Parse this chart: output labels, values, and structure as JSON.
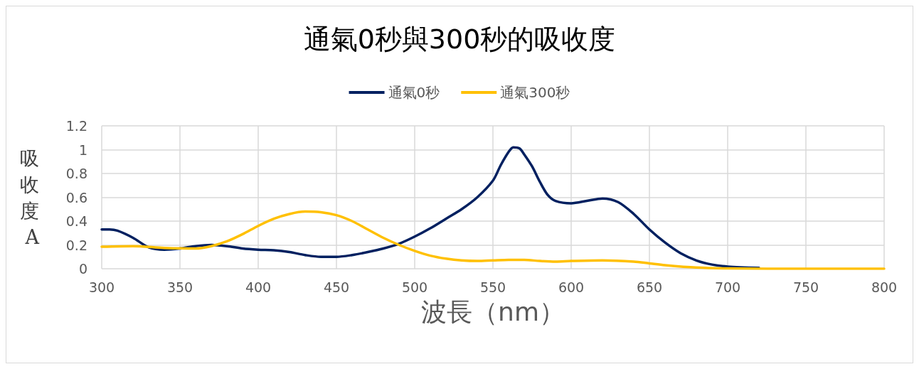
{
  "chart_data": {
    "type": "line",
    "title": "通氣0秒與300秒的吸收度",
    "xlabel": "波長（nm）",
    "ylabel": "吸收度A",
    "xlim": [
      300,
      800
    ],
    "xticks": [
      300,
      350,
      400,
      450,
      500,
      550,
      600,
      650,
      700,
      750,
      800
    ],
    "ylim": [
      0,
      1.2
    ],
    "yticks": [
      0,
      0.2,
      0.4,
      0.6,
      0.8,
      1,
      1.2
    ],
    "grid": true,
    "legend": "top",
    "marker": "none",
    "line_style": "solid",
    "series": [
      {
        "name": "通氣0秒",
        "color": "#002060",
        "x": [
          300,
          305,
          310,
          320,
          330,
          340,
          350,
          360,
          370,
          380,
          390,
          400,
          410,
          420,
          430,
          440,
          450,
          460,
          470,
          480,
          490,
          500,
          510,
          520,
          530,
          540,
          550,
          555,
          560,
          563,
          567,
          570,
          575,
          580,
          585,
          590,
          600,
          610,
          620,
          630,
          640,
          650,
          660,
          670,
          680,
          690,
          700,
          720
        ],
        "values": [
          0.33,
          0.33,
          0.32,
          0.26,
          0.18,
          0.16,
          0.17,
          0.19,
          0.2,
          0.19,
          0.17,
          0.16,
          0.155,
          0.14,
          0.115,
          0.1,
          0.1,
          0.115,
          0.14,
          0.17,
          0.21,
          0.27,
          0.34,
          0.42,
          0.5,
          0.6,
          0.74,
          0.87,
          0.98,
          1.02,
          1.01,
          0.96,
          0.86,
          0.73,
          0.62,
          0.57,
          0.55,
          0.57,
          0.59,
          0.56,
          0.46,
          0.33,
          0.22,
          0.13,
          0.07,
          0.035,
          0.018,
          0.007
        ]
      },
      {
        "name": "通氣300秒",
        "color": "#ffc000",
        "x": [
          300,
          320,
          340,
          360,
          370,
          380,
          390,
          400,
          410,
          420,
          430,
          440,
          450,
          460,
          470,
          480,
          490,
          500,
          510,
          520,
          530,
          540,
          550,
          560,
          570,
          580,
          590,
          600,
          620,
          640,
          650,
          660,
          680,
          700,
          750,
          800
        ],
        "values": [
          0.185,
          0.19,
          0.175,
          0.17,
          0.19,
          0.23,
          0.29,
          0.36,
          0.42,
          0.46,
          0.48,
          0.475,
          0.45,
          0.4,
          0.33,
          0.26,
          0.2,
          0.15,
          0.11,
          0.085,
          0.07,
          0.065,
          0.07,
          0.075,
          0.075,
          0.065,
          0.06,
          0.065,
          0.07,
          0.06,
          0.045,
          0.03,
          0.01,
          0.003,
          0,
          0
        ]
      }
    ]
  }
}
